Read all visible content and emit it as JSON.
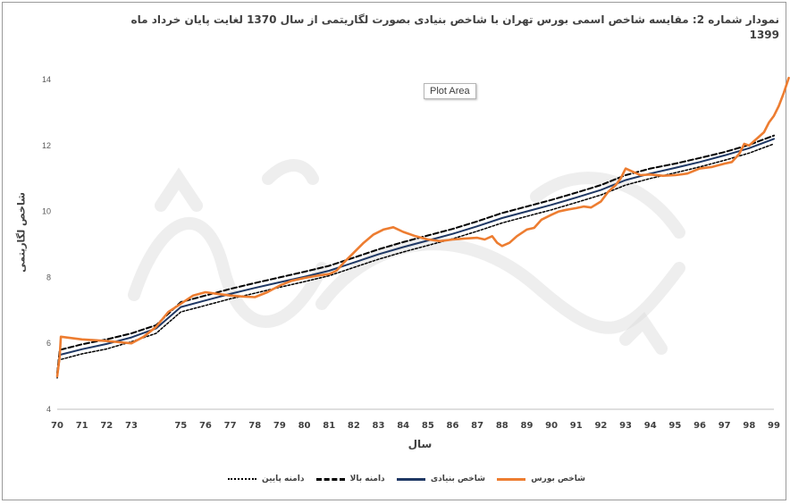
{
  "chart_data": {
    "type": "line",
    "title": "نمودار شماره 2: مقایسه شاخص اسمی بورس تهران با شاخص بنیادی بصورت لگاریتمی از سال 1370 لغایت پایان خرداد ماه 1399",
    "xlabel": "سال",
    "ylabel": "شاخص لگاریتمی",
    "plot_area_tag": "Plot Area",
    "xlim": [
      70,
      99
    ],
    "ylim": [
      4,
      14
    ],
    "x_ticks": [
      "70",
      "71",
      "72",
      "73",
      "75",
      "76",
      "77",
      "78",
      "79",
      "80",
      "81",
      "82",
      "83",
      "84",
      "85",
      "86",
      "87",
      "88",
      "89",
      "90",
      "91",
      "92",
      "93",
      "94",
      "95",
      "96",
      "97",
      "98",
      "99"
    ],
    "y_ticks": [
      "4",
      "6",
      "8",
      "10",
      "12",
      "14"
    ],
    "grid": false,
    "legend_position": "bottom",
    "series": [
      {
        "name": "شاخص بورس",
        "color": "#ED7D31",
        "style": "solid",
        "points": [
          [
            70,
            5.0
          ],
          [
            70.1,
            5.6
          ],
          [
            70.15,
            6.2
          ],
          [
            71,
            6.12
          ],
          [
            72,
            6.07
          ],
          [
            73,
            6.0
          ],
          [
            73.5,
            6.2
          ],
          [
            74,
            6.5
          ],
          [
            74.5,
            6.95
          ],
          [
            75,
            7.2
          ],
          [
            75.5,
            7.45
          ],
          [
            76,
            7.55
          ],
          [
            76.5,
            7.5
          ],
          [
            77,
            7.45
          ],
          [
            77.5,
            7.42
          ],
          [
            78,
            7.4
          ],
          [
            78.5,
            7.55
          ],
          [
            79,
            7.75
          ],
          [
            79.5,
            7.9
          ],
          [
            80,
            7.98
          ],
          [
            80.5,
            8.05
          ],
          [
            81,
            8.1
          ],
          [
            81.3,
            8.2
          ],
          [
            81.6,
            8.45
          ],
          [
            82,
            8.75
          ],
          [
            82.4,
            9.05
          ],
          [
            82.8,
            9.3
          ],
          [
            83.2,
            9.45
          ],
          [
            83.6,
            9.52
          ],
          [
            84,
            9.38
          ],
          [
            84.5,
            9.25
          ],
          [
            85,
            9.15
          ],
          [
            85.5,
            9.1
          ],
          [
            86,
            9.15
          ],
          [
            86.5,
            9.18
          ],
          [
            87,
            9.2
          ],
          [
            87.3,
            9.15
          ],
          [
            87.6,
            9.25
          ],
          [
            87.8,
            9.05
          ],
          [
            88,
            8.95
          ],
          [
            88.3,
            9.05
          ],
          [
            88.6,
            9.25
          ],
          [
            89,
            9.45
          ],
          [
            89.3,
            9.5
          ],
          [
            89.6,
            9.75
          ],
          [
            90,
            9.9
          ],
          [
            90.3,
            10.0
          ],
          [
            90.6,
            10.05
          ],
          [
            91,
            10.1
          ],
          [
            91.3,
            10.15
          ],
          [
            91.6,
            10.12
          ],
          [
            92,
            10.3
          ],
          [
            92.3,
            10.6
          ],
          [
            92.6,
            10.8
          ],
          [
            92.8,
            11.0
          ],
          [
            93,
            11.3
          ],
          [
            93.3,
            11.2
          ],
          [
            93.6,
            11.1
          ],
          [
            94,
            11.12
          ],
          [
            94.5,
            11.08
          ],
          [
            95,
            11.1
          ],
          [
            95.5,
            11.15
          ],
          [
            96,
            11.3
          ],
          [
            96.5,
            11.35
          ],
          [
            97,
            11.45
          ],
          [
            97.3,
            11.5
          ],
          [
            97.6,
            11.75
          ],
          [
            97.8,
            12.05
          ],
          [
            98,
            12.0
          ],
          [
            98.3,
            12.2
          ],
          [
            98.6,
            12.4
          ],
          [
            98.8,
            12.7
          ],
          [
            99,
            12.9
          ],
          [
            99.2,
            13.2
          ],
          [
            99.4,
            13.6
          ],
          [
            99.6,
            14.05
          ]
        ]
      },
      {
        "name": "شاخص بنیادی",
        "color": "#1F3864",
        "style": "solid",
        "points": [
          [
            70,
            5.0
          ],
          [
            70.1,
            5.65
          ],
          [
            71,
            5.82
          ],
          [
            72,
            5.98
          ],
          [
            73,
            6.18
          ],
          [
            74,
            6.45
          ],
          [
            75,
            7.1
          ],
          [
            76,
            7.3
          ],
          [
            77,
            7.5
          ],
          [
            78,
            7.68
          ],
          [
            79,
            7.85
          ],
          [
            80,
            8.02
          ],
          [
            81,
            8.2
          ],
          [
            82,
            8.45
          ],
          [
            83,
            8.7
          ],
          [
            84,
            8.92
          ],
          [
            85,
            9.12
          ],
          [
            86,
            9.32
          ],
          [
            87,
            9.55
          ],
          [
            88,
            9.8
          ],
          [
            89,
            10.0
          ],
          [
            90,
            10.2
          ],
          [
            91,
            10.42
          ],
          [
            92,
            10.65
          ],
          [
            93,
            10.95
          ],
          [
            94,
            11.15
          ],
          [
            95,
            11.32
          ],
          [
            96,
            11.5
          ],
          [
            97,
            11.7
          ],
          [
            98,
            11.92
          ],
          [
            99,
            12.2
          ]
        ]
      },
      {
        "name": "دامنه بالا",
        "color": "#000000",
        "style": "dashed",
        "points": [
          [
            70,
            5.1
          ],
          [
            70.1,
            5.8
          ],
          [
            71,
            5.97
          ],
          [
            72,
            6.12
          ],
          [
            73,
            6.3
          ],
          [
            74,
            6.55
          ],
          [
            75,
            7.25
          ],
          [
            76,
            7.45
          ],
          [
            77,
            7.65
          ],
          [
            78,
            7.83
          ],
          [
            79,
            8.0
          ],
          [
            80,
            8.17
          ],
          [
            81,
            8.35
          ],
          [
            82,
            8.6
          ],
          [
            83,
            8.85
          ],
          [
            84,
            9.07
          ],
          [
            85,
            9.27
          ],
          [
            86,
            9.47
          ],
          [
            87,
            9.7
          ],
          [
            88,
            9.95
          ],
          [
            89,
            10.15
          ],
          [
            90,
            10.35
          ],
          [
            91,
            10.57
          ],
          [
            92,
            10.8
          ],
          [
            93,
            11.1
          ],
          [
            94,
            11.3
          ],
          [
            95,
            11.45
          ],
          [
            96,
            11.62
          ],
          [
            97,
            11.8
          ],
          [
            98,
            12.02
          ],
          [
            99,
            12.3
          ]
        ]
      },
      {
        "name": "دامنه پایین",
        "color": "#000000",
        "style": "dotted",
        "points": [
          [
            70,
            4.95
          ],
          [
            70.1,
            5.5
          ],
          [
            71,
            5.68
          ],
          [
            72,
            5.83
          ],
          [
            73,
            6.05
          ],
          [
            74,
            6.3
          ],
          [
            75,
            6.95
          ],
          [
            76,
            7.15
          ],
          [
            77,
            7.35
          ],
          [
            78,
            7.52
          ],
          [
            79,
            7.7
          ],
          [
            80,
            7.87
          ],
          [
            81,
            8.05
          ],
          [
            82,
            8.3
          ],
          [
            83,
            8.55
          ],
          [
            84,
            8.77
          ],
          [
            85,
            8.97
          ],
          [
            86,
            9.17
          ],
          [
            87,
            9.4
          ],
          [
            88,
            9.65
          ],
          [
            89,
            9.85
          ],
          [
            90,
            10.05
          ],
          [
            91,
            10.27
          ],
          [
            92,
            10.5
          ],
          [
            93,
            10.8
          ],
          [
            94,
            11.0
          ],
          [
            95,
            11.17
          ],
          [
            96,
            11.35
          ],
          [
            97,
            11.55
          ],
          [
            98,
            11.77
          ],
          [
            99,
            12.05
          ]
        ]
      }
    ]
  }
}
